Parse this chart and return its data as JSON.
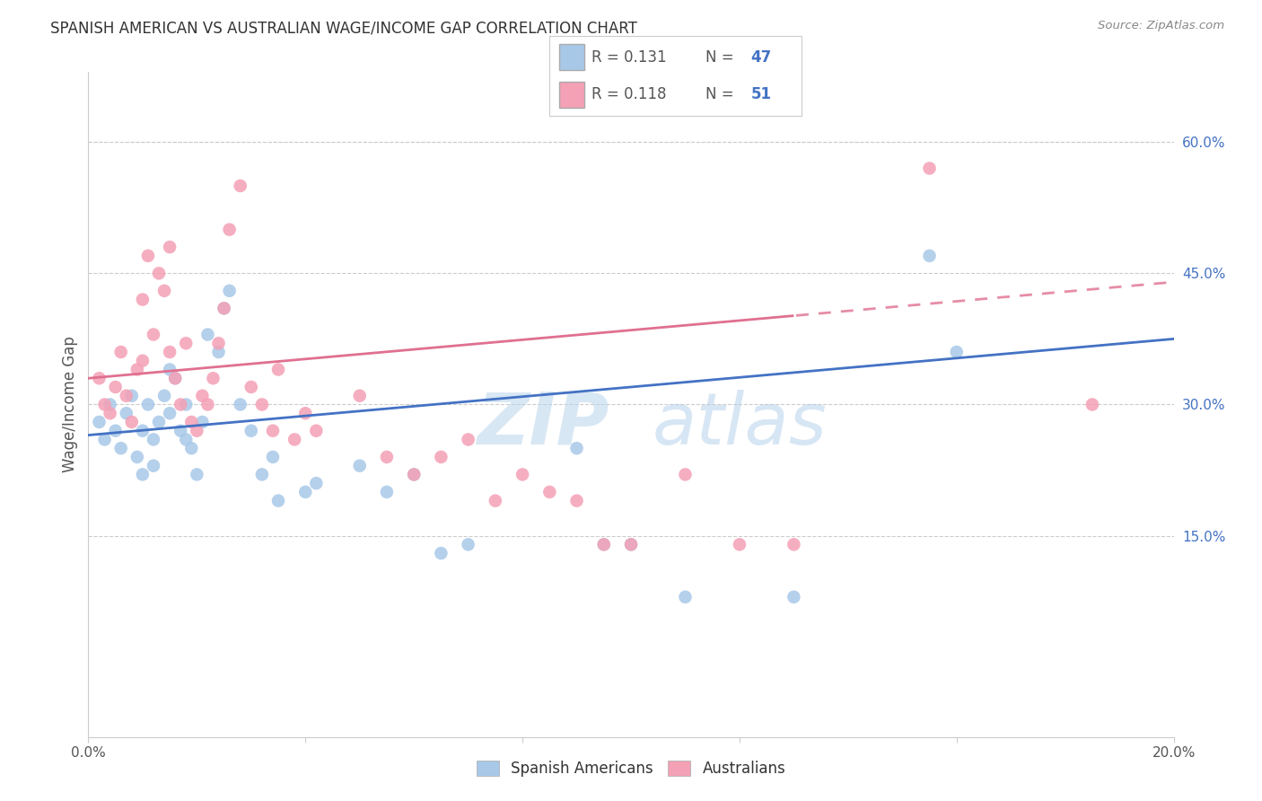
{
  "title": "SPANISH AMERICAN VS AUSTRALIAN WAGE/INCOME GAP CORRELATION CHART",
  "source": "Source: ZipAtlas.com",
  "ylabel": "Wage/Income Gap",
  "xlim": [
    0.0,
    0.2
  ],
  "ylim": [
    -0.08,
    0.68
  ],
  "right_yticks": [
    0.15,
    0.3,
    0.45,
    0.6
  ],
  "right_yticklabels": [
    "15.0%",
    "30.0%",
    "45.0%",
    "60.0%"
  ],
  "color_blue": "#a8c8e8",
  "color_pink": "#f4a0b5",
  "color_blue_text": "#4472c4",
  "color_pink_text": "#e0607a",
  "color_line_blue": "#4472c4",
  "color_line_pink": "#e07090",
  "background": "#ffffff",
  "grid_color": "#cccccc",
  "spanish_x": [
    0.002,
    0.003,
    0.004,
    0.005,
    0.006,
    0.007,
    0.008,
    0.009,
    0.01,
    0.01,
    0.011,
    0.012,
    0.012,
    0.013,
    0.014,
    0.015,
    0.015,
    0.016,
    0.017,
    0.018,
    0.018,
    0.019,
    0.02,
    0.021,
    0.022,
    0.024,
    0.025,
    0.026,
    0.028,
    0.03,
    0.032,
    0.034,
    0.035,
    0.04,
    0.042,
    0.05,
    0.055,
    0.06,
    0.065,
    0.07,
    0.09,
    0.095,
    0.1,
    0.11,
    0.13,
    0.155,
    0.16
  ],
  "spanish_y": [
    0.28,
    0.26,
    0.3,
    0.27,
    0.25,
    0.29,
    0.31,
    0.24,
    0.22,
    0.27,
    0.3,
    0.26,
    0.23,
    0.28,
    0.31,
    0.34,
    0.29,
    0.33,
    0.27,
    0.26,
    0.3,
    0.25,
    0.22,
    0.28,
    0.38,
    0.36,
    0.41,
    0.43,
    0.3,
    0.27,
    0.22,
    0.24,
    0.19,
    0.2,
    0.21,
    0.23,
    0.2,
    0.22,
    0.13,
    0.14,
    0.25,
    0.14,
    0.14,
    0.08,
    0.08,
    0.47,
    0.36
  ],
  "australian_x": [
    0.002,
    0.003,
    0.004,
    0.005,
    0.006,
    0.007,
    0.008,
    0.009,
    0.01,
    0.01,
    0.011,
    0.012,
    0.013,
    0.014,
    0.015,
    0.015,
    0.016,
    0.017,
    0.018,
    0.019,
    0.02,
    0.021,
    0.022,
    0.023,
    0.024,
    0.025,
    0.026,
    0.028,
    0.03,
    0.032,
    0.034,
    0.035,
    0.038,
    0.04,
    0.042,
    0.05,
    0.055,
    0.06,
    0.065,
    0.07,
    0.075,
    0.08,
    0.085,
    0.09,
    0.095,
    0.1,
    0.11,
    0.12,
    0.13,
    0.155,
    0.185
  ],
  "australian_y": [
    0.33,
    0.3,
    0.29,
    0.32,
    0.36,
    0.31,
    0.28,
    0.34,
    0.35,
    0.42,
    0.47,
    0.38,
    0.45,
    0.43,
    0.36,
    0.48,
    0.33,
    0.3,
    0.37,
    0.28,
    0.27,
    0.31,
    0.3,
    0.33,
    0.37,
    0.41,
    0.5,
    0.55,
    0.32,
    0.3,
    0.27,
    0.34,
    0.26,
    0.29,
    0.27,
    0.31,
    0.24,
    0.22,
    0.24,
    0.26,
    0.19,
    0.22,
    0.2,
    0.19,
    0.14,
    0.14,
    0.22,
    0.14,
    0.14,
    0.57,
    0.3
  ],
  "trend_split": 0.13
}
